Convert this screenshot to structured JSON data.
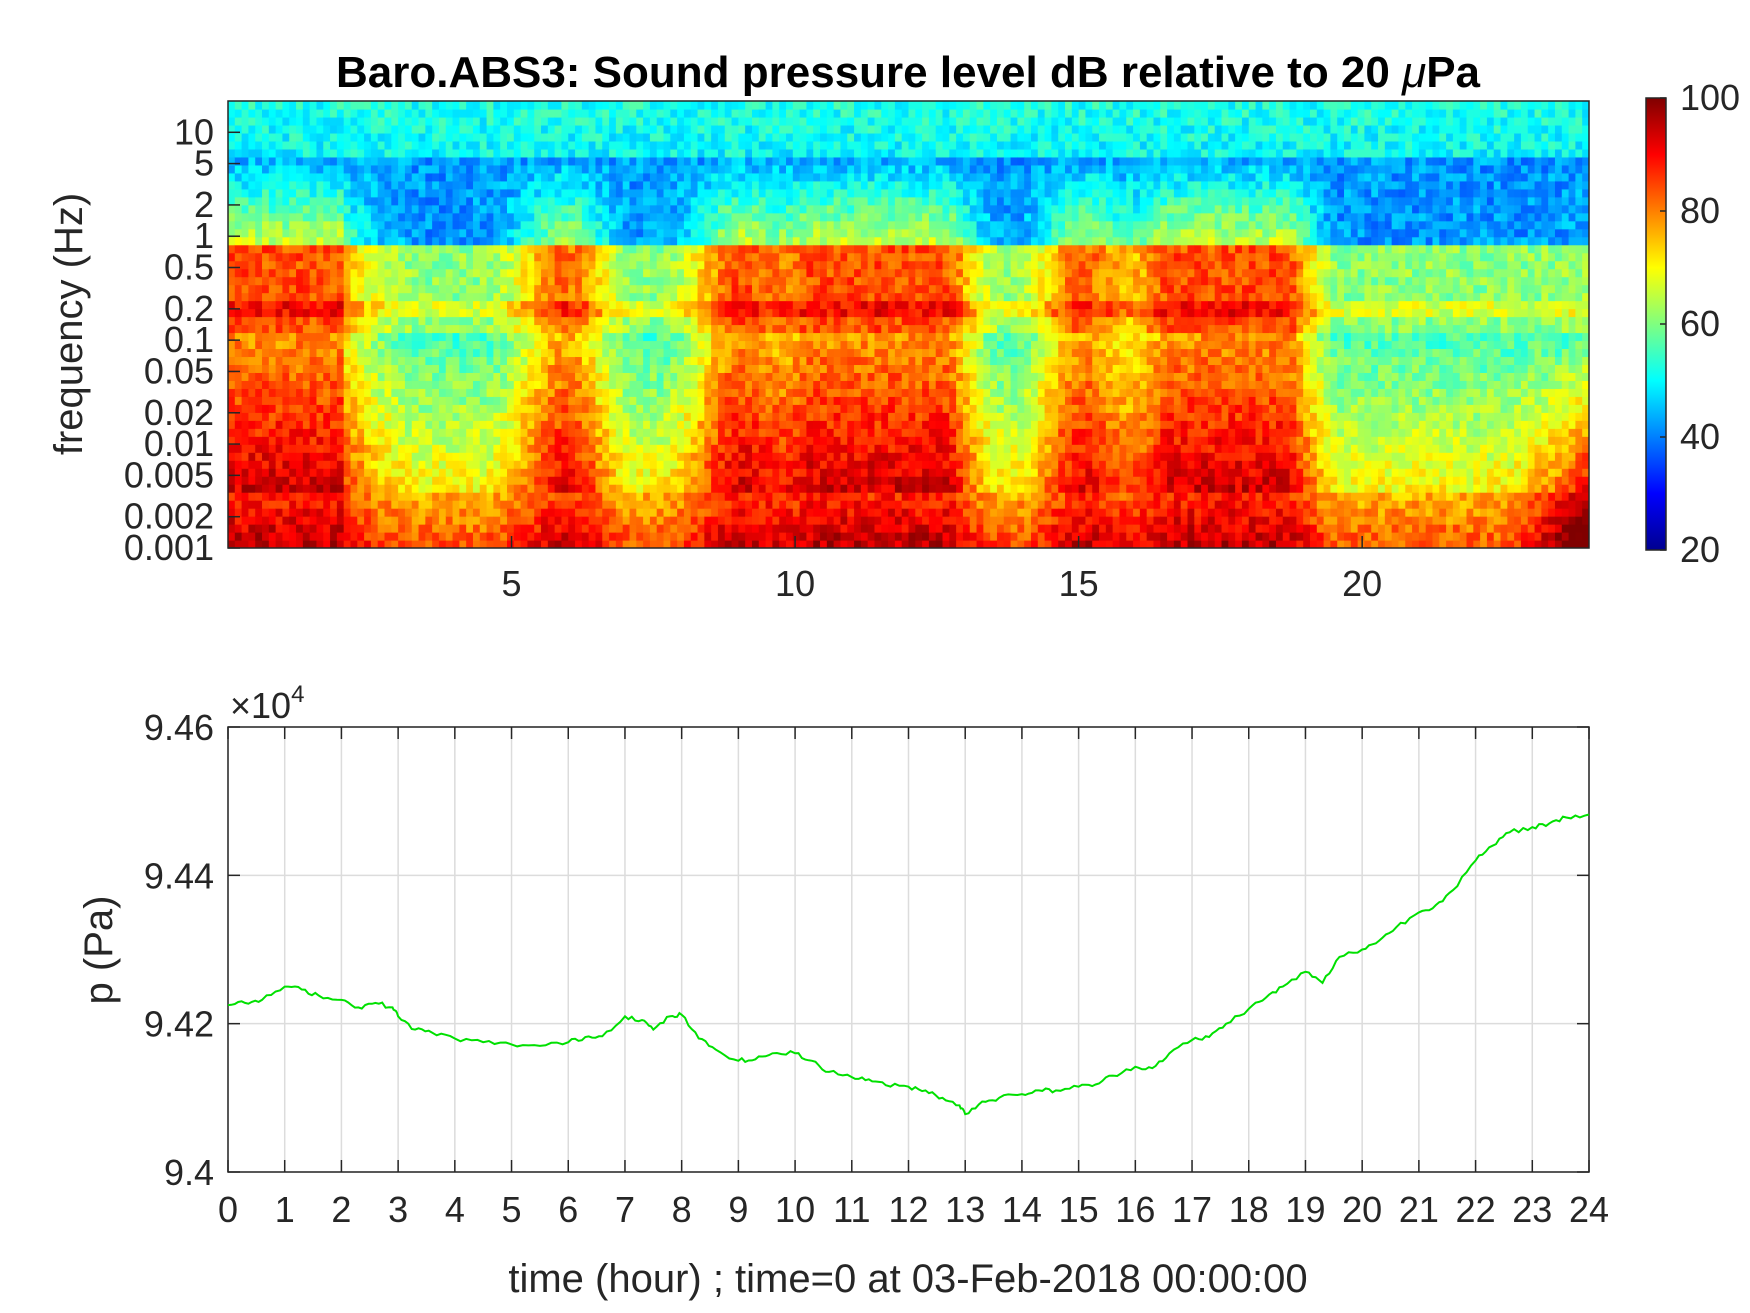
{
  "chart_data": [
    {
      "type": "heatmap",
      "title": "Baro.ABS3: Sound pressure level dB relative to 20 μPa",
      "title_prefix": "Baro.ABS3: Sound pressure level dB relative to 20 ",
      "title_mu": "μ",
      "title_suffix": "Pa",
      "xlabel": "",
      "ylabel": "frequency (Hz)",
      "xlim": [
        0,
        24
      ],
      "ylim": [
        0.001,
        20
      ],
      "yscale": "log",
      "x_ticks": [
        5,
        10,
        15,
        20
      ],
      "x_tick_labels": [
        "5",
        "10",
        "15",
        "20"
      ],
      "y_ticks": [
        0.001,
        0.002,
        0.005,
        0.01,
        0.02,
        0.05,
        0.1,
        0.2,
        0.5,
        1,
        2,
        5,
        10
      ],
      "y_tick_labels": [
        "0.001",
        "0.002",
        "0.005",
        "0.01",
        "0.02",
        "0.05",
        "0.1",
        "0.2",
        "0.5",
        "1",
        "2",
        "5",
        "10"
      ],
      "colormap": "jet",
      "colorbar": {
        "range": [
          20,
          100
        ],
        "ticks": [
          20,
          40,
          60,
          80,
          100
        ],
        "tick_labels": [
          "20",
          "40",
          "60",
          "80",
          "100"
        ]
      },
      "activity_hours": [
        0.5,
        1.5,
        6.0,
        9.0,
        10.5,
        11.8,
        12.5,
        15.0,
        16.8,
        17.8,
        18.5
      ],
      "quiet_hours": [
        4.0,
        7.2,
        13.8,
        19.8,
        21.0,
        22.8
      ]
    },
    {
      "type": "line",
      "title": "",
      "xlabel": "time (hour) ; time=0 at 03-Feb-2018 00:00:00",
      "ylabel": "p (Pa)",
      "y_exponent_base": "×10",
      "y_exponent_power": "4",
      "xlim": [
        0,
        24
      ],
      "ylim": [
        94000,
        94600
      ],
      "x_ticks": [
        0,
        1,
        2,
        3,
        4,
        5,
        6,
        7,
        8,
        9,
        10,
        11,
        12,
        13,
        14,
        15,
        16,
        17,
        18,
        19,
        20,
        21,
        22,
        23,
        24
      ],
      "x_tick_labels": [
        "0",
        "1",
        "2",
        "3",
        "4",
        "5",
        "6",
        "7",
        "8",
        "9",
        "10",
        "11",
        "12",
        "13",
        "14",
        "15",
        "16",
        "17",
        "18",
        "19",
        "20",
        "21",
        "22",
        "23",
        "24"
      ],
      "y_ticks": [
        94000,
        94200,
        94400,
        94600
      ],
      "y_tick_labels": [
        "9.4",
        "9.42",
        "9.44",
        "9.46"
      ],
      "grid": true,
      "series": [
        {
          "color": "#00e000",
          "x": [
            0,
            0.3,
            0.6,
            1.0,
            1.3,
            1.6,
            2.0,
            2.3,
            2.6,
            2.9,
            3.0,
            3.3,
            3.6,
            4.0,
            4.5,
            5.0,
            5.5,
            6.0,
            6.3,
            6.6,
            7.0,
            7.3,
            7.5,
            7.8,
            8.0,
            8.3,
            8.6,
            9.0,
            9.3,
            9.6,
            10.0,
            10.3,
            10.6,
            11.0,
            11.3,
            11.6,
            12.0,
            12.3,
            12.6,
            12.9,
            13.0,
            13.3,
            13.6,
            14.0,
            14.3,
            14.6,
            15.0,
            15.3,
            15.6,
            16.0,
            16.3,
            16.6,
            17.0,
            17.3,
            17.6,
            18.0,
            18.3,
            18.6,
            19.0,
            19.3,
            19.6,
            20.0,
            20.3,
            20.6,
            21.0,
            21.3,
            21.6,
            22.0,
            22.3,
            22.6,
            23.0,
            23.3,
            23.6,
            24.0
          ],
          "y": [
            94225,
            94228,
            94232,
            94250,
            94246,
            94238,
            94232,
            94222,
            94228,
            94222,
            94210,
            94192,
            94188,
            94180,
            94175,
            94172,
            94170,
            94175,
            94182,
            94183,
            94210,
            94205,
            94192,
            94210,
            94212,
            94180,
            94165,
            94150,
            94152,
            94160,
            94160,
            94150,
            94135,
            94128,
            94125,
            94117,
            94115,
            94110,
            94100,
            94090,
            94078,
            94095,
            94100,
            94105,
            94110,
            94110,
            94115,
            94118,
            94130,
            94142,
            94140,
            94160,
            94178,
            94182,
            94200,
            94220,
            94235,
            94250,
            94270,
            94255,
            94290,
            94300,
            94312,
            94330,
            94350,
            94360,
            94380,
            94420,
            94440,
            94458,
            94465,
            94470,
            94478,
            94482
          ]
        }
      ]
    }
  ]
}
